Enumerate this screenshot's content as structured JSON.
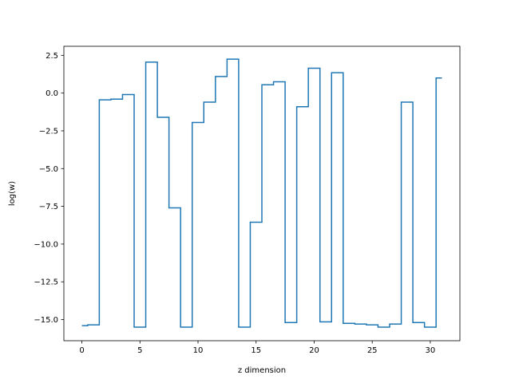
{
  "chart_data": {
    "type": "line",
    "drawstyle": "steps-mid",
    "xlabel": "z dimension",
    "ylabel": "log(w)",
    "xlim": [
      -1.55,
      32.55
    ],
    "ylim": [
      -16.4,
      3.1
    ],
    "xticks": [
      0,
      5,
      10,
      15,
      20,
      25,
      30
    ],
    "xtick_labels": [
      "0",
      "5",
      "10",
      "15",
      "20",
      "25",
      "30"
    ],
    "yticks": [
      2.5,
      0.0,
      -2.5,
      -5.0,
      -7.5,
      -10.0,
      -12.5,
      -15.0
    ],
    "ytick_labels": [
      "2.5",
      "0.0",
      "−2.5",
      "−5.0",
      "−7.5",
      "−10.0",
      "−12.5",
      "−15.0"
    ],
    "grid": false,
    "series": [
      {
        "color": "#1f77b4",
        "x": [
          0,
          1,
          2,
          3,
          4,
          5,
          6,
          7,
          8,
          9,
          10,
          11,
          12,
          13,
          14,
          15,
          16,
          17,
          18,
          19,
          20,
          21,
          22,
          23,
          24,
          25,
          26,
          27,
          28,
          29,
          30,
          31
        ],
        "y": [
          -15.4,
          -15.35,
          -0.45,
          -0.4,
          -0.1,
          -15.5,
          2.05,
          -1.6,
          -7.6,
          -15.5,
          -1.95,
          -0.6,
          1.1,
          2.25,
          -15.5,
          -8.55,
          0.55,
          0.75,
          -15.2,
          -0.9,
          1.65,
          -15.15,
          1.35,
          -15.25,
          -15.3,
          -15.35,
          -15.5,
          -15.3,
          -0.6,
          -15.2,
          -15.5,
          1.0
        ]
      }
    ]
  }
}
